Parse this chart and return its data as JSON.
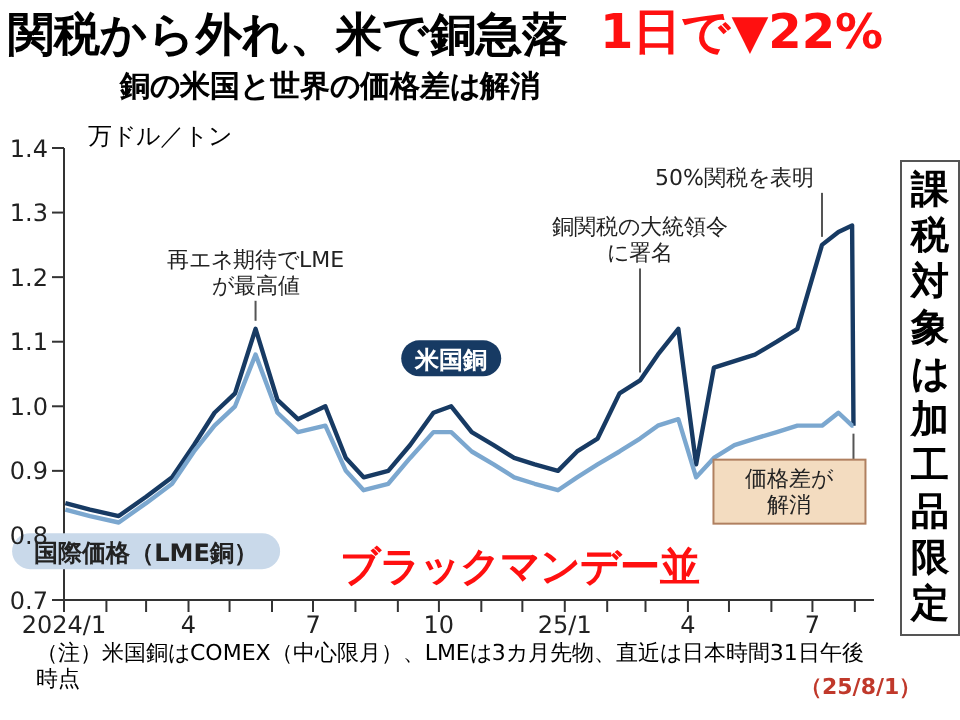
{
  "chart_data": {
    "type": "line",
    "title": "関税から外れ、米で銅急落",
    "subtitle": "銅の米国と世界の価格差は解消",
    "ylabel": "万ドル／トン",
    "x": [
      "2024-01-02",
      "2024-01-20",
      "2024-02-10",
      "2024-03-01",
      "2024-03-20",
      "2024-04-05",
      "2024-04-20",
      "2024-05-05",
      "2024-05-20",
      "2024-06-05",
      "2024-06-20",
      "2024-07-10",
      "2024-07-25",
      "2024-08-07",
      "2024-08-25",
      "2024-09-10",
      "2024-09-27",
      "2024-10-10",
      "2024-10-25",
      "2024-11-10",
      "2024-11-25",
      "2024-12-10",
      "2024-12-27",
      "2025-01-10",
      "2025-01-25",
      "2025-02-10",
      "2025-02-25",
      "2025-03-10",
      "2025-03-25",
      "2025-04-07",
      "2025-04-20",
      "2025-05-05",
      "2025-05-20",
      "2025-06-05",
      "2025-06-20",
      "2025-07-08",
      "2025-07-20",
      "2025-07-30",
      "2025-07-31"
    ],
    "series": [
      {
        "name": "米国銅",
        "color": "#173a63",
        "values": [
          0.85,
          0.84,
          0.83,
          0.86,
          0.89,
          0.94,
          0.99,
          1.02,
          1.12,
          1.01,
          0.98,
          1.0,
          0.92,
          0.89,
          0.9,
          0.94,
          0.99,
          1.0,
          0.96,
          0.94,
          0.92,
          0.91,
          0.9,
          0.93,
          0.95,
          1.02,
          1.04,
          1.08,
          1.12,
          0.91,
          1.06,
          1.07,
          1.08,
          1.1,
          1.12,
          1.25,
          1.27,
          1.28,
          0.97
        ]
      },
      {
        "name": "国際価格（LME銅）",
        "color": "#7ba7cf",
        "values": [
          0.84,
          0.83,
          0.82,
          0.85,
          0.88,
          0.93,
          0.97,
          1.0,
          1.08,
          0.99,
          0.96,
          0.97,
          0.9,
          0.87,
          0.88,
          0.92,
          0.96,
          0.96,
          0.93,
          0.91,
          0.89,
          0.88,
          0.87,
          0.89,
          0.91,
          0.93,
          0.95,
          0.97,
          0.98,
          0.89,
          0.92,
          0.94,
          0.95,
          0.96,
          0.97,
          0.97,
          0.99,
          0.97,
          0.97
        ]
      }
    ],
    "xlim": [
      "2024-01",
      "2025-08-15"
    ],
    "xticks": [
      {
        "value": "2024-01",
        "label": "2024/1"
      },
      {
        "value": "2024-02",
        "label": null
      },
      {
        "value": "2024-03",
        "label": null
      },
      {
        "value": "2024-04",
        "label": "4"
      },
      {
        "value": "2024-05",
        "label": null
      },
      {
        "value": "2024-06",
        "label": null
      },
      {
        "value": "2024-07",
        "label": "7"
      },
      {
        "value": "2024-08",
        "label": null
      },
      {
        "value": "2024-09",
        "label": null
      },
      {
        "value": "2024-10",
        "label": "10"
      },
      {
        "value": "2024-11",
        "label": null
      },
      {
        "value": "2024-12",
        "label": null
      },
      {
        "value": "2025-01",
        "label": "25/1"
      },
      {
        "value": "2025-02",
        "label": null
      },
      {
        "value": "2025-03",
        "label": null
      },
      {
        "value": "2025-04",
        "label": "4"
      },
      {
        "value": "2025-05",
        "label": null
      },
      {
        "value": "2025-06",
        "label": null
      },
      {
        "value": "2025-07",
        "label": "7"
      },
      {
        "value": "2025-08",
        "label": null
      }
    ],
    "ylim": [
      0.7,
      1.4
    ],
    "yticks": [
      0.7,
      0.8,
      0.9,
      {
        "value": 1.0,
        "label": "1.0"
      },
      1.1,
      1.2,
      1.3,
      1.4
    ],
    "marker": "none",
    "line_style": "solid",
    "annotations": [
      {
        "text": "再エネ期待でLMEが最高値",
        "x": "2024-05-20",
        "y": 1.12
      },
      {
        "text": "銅関税の大統領令に署名",
        "x": "2025-02-25",
        "y": 1.04
      },
      {
        "text": "50%関税を表明",
        "x": "2025-07-08",
        "y": 1.25
      },
      {
        "text": "価格差が解消",
        "x": "2025-07-31",
        "y": 0.97
      },
      "1日で▼22%",
      "ブラックマンデー並",
      "課税対象は加工品限定",
      "（注）米国銅はCOMEX（中心限月）、LMEは3カ月先物、直近は日本時間31日午後時点",
      "（25/8/1）"
    ]
  }
}
